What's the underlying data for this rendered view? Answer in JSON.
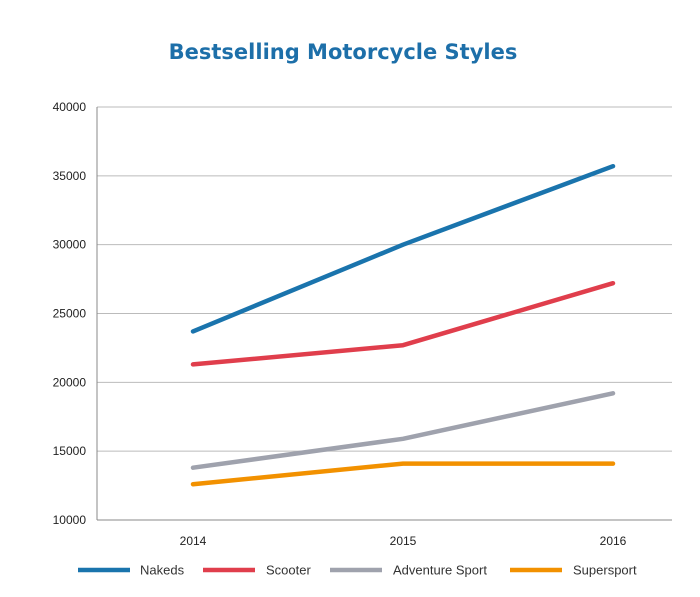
{
  "chart_data": {
    "type": "line",
    "title": "Bestselling Motorcycle Styles",
    "xlabel": "",
    "ylabel": "",
    "categories": [
      "2014",
      "2015",
      "2016"
    ],
    "ylim": [
      10000,
      40000
    ],
    "yticks": [
      "10000",
      "15000",
      "20000",
      "25000",
      "30000",
      "35000",
      "40000"
    ],
    "grid": "horizontal",
    "legend_position": "bottom",
    "series": [
      {
        "name": "Nakeds",
        "color": "#1a74ad",
        "values": [
          23700,
          30000,
          35700
        ]
      },
      {
        "name": "Scooter",
        "color": "#e03e4c",
        "values": [
          21300,
          22700,
          27200
        ]
      },
      {
        "name": "Adventure Sport",
        "color": "#9fa2ad",
        "values": [
          13800,
          15900,
          19200
        ]
      },
      {
        "name": "Supersport",
        "color": "#f29100",
        "values": [
          12600,
          14100,
          14100
        ]
      }
    ]
  },
  "colors": {
    "title": "#1d6fa9",
    "grid": "#bbbbbb",
    "axis": "#888888"
  }
}
